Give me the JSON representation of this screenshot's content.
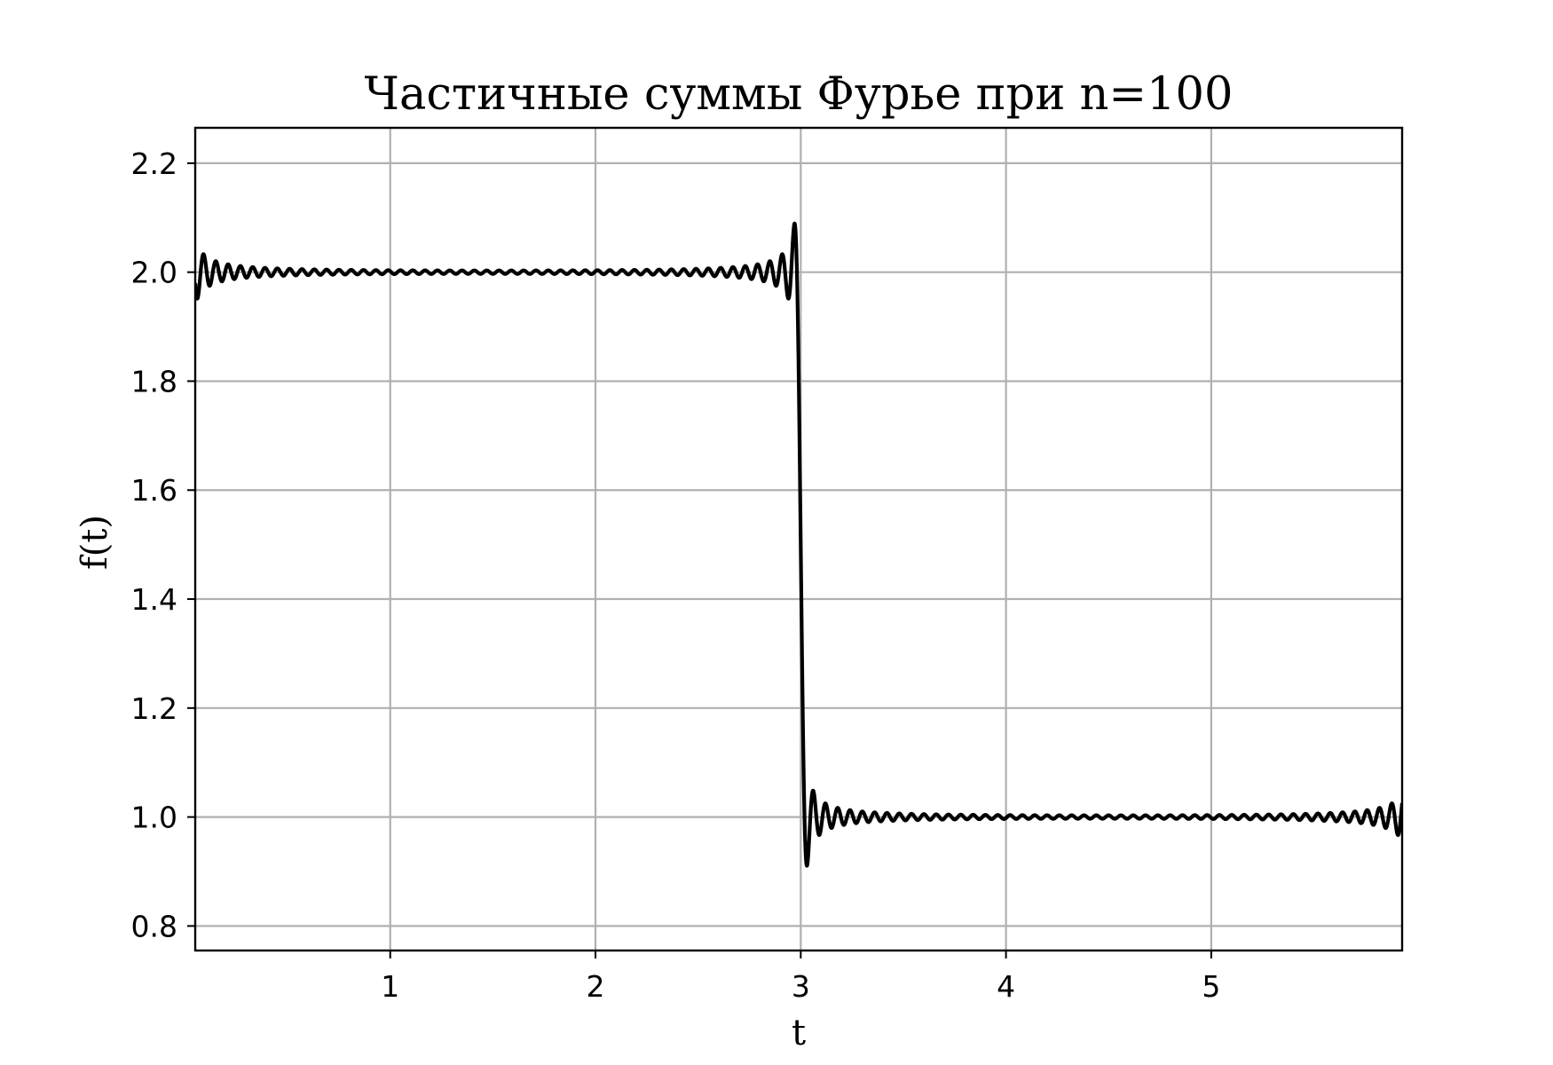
{
  "chart_data": {
    "type": "line",
    "title": "Частичные суммы Фурье при n=100",
    "xlabel": "t",
    "ylabel": "f(t)",
    "xlim": [
      0.05,
      5.93
    ],
    "ylim": [
      0.755,
      2.265
    ],
    "x_ticks": [
      "1",
      "2",
      "3",
      "4",
      "5"
    ],
    "y_ticks": [
      "0.8",
      "1.0",
      "1.2",
      "1.4",
      "1.6",
      "1.8",
      "2.0",
      "2.2"
    ],
    "grid": true,
    "legend": "none",
    "series": [
      {
        "color": "#000000",
        "description_values": {
          "level_low_t": "0 < t < 3",
          "level_low_value": 2.0,
          "level_high_t": "3 < t < 6",
          "level_high_value": 1.0,
          "overshoot_peak": 2.085,
          "undershoot_min": 0.915,
          "jump_at_t": 3.0
        },
        "sample_points": [
          {
            "x": 0.05,
            "y": 1.94
          },
          {
            "x": 0.08,
            "y": 2.045
          },
          {
            "x": 0.5,
            "y": 2.0
          },
          {
            "x": 1.5,
            "y": 2.0
          },
          {
            "x": 2.5,
            "y": 2.0
          },
          {
            "x": 2.97,
            "y": 2.085
          },
          {
            "x": 3.0,
            "y": 1.5
          },
          {
            "x": 3.03,
            "y": 0.915
          },
          {
            "x": 3.5,
            "y": 1.0
          },
          {
            "x": 4.5,
            "y": 1.0
          },
          {
            "x": 5.5,
            "y": 1.0
          },
          {
            "x": 5.93,
            "y": 1.065
          }
        ]
      }
    ]
  }
}
